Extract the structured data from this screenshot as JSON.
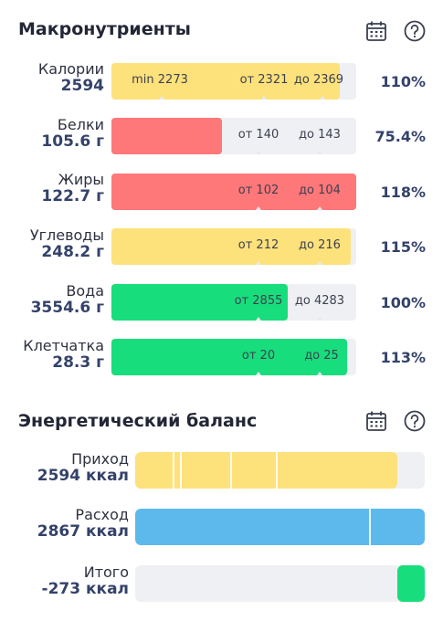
{
  "colors": {
    "yellow": "#fde17b",
    "red": "#fe7779",
    "green": "#18dd7c",
    "blue": "#5db9ec",
    "track": "#eff0f3"
  },
  "macro": {
    "title": "Макронутриенты",
    "calendar_icon": "calendar-icon",
    "help_icon": "help-icon",
    "rows": [
      {
        "name": "Калории",
        "value": "2594",
        "percent": "110%",
        "labels": [
          "min 2273",
          "от 2321",
          "до 2369"
        ],
        "fill_percent": 110,
        "color": "yellow"
      },
      {
        "name": "Белки",
        "value": "105.6 г",
        "percent": "75.4%",
        "labels": [
          "от 140",
          "до 143"
        ],
        "fill_percent": 75.4,
        "color": "red"
      },
      {
        "name": "Жиры",
        "value": "122.7 г",
        "percent": "118%",
        "labels": [
          "от 102",
          "до 104"
        ],
        "fill_percent": 118,
        "color": "red"
      },
      {
        "name": "Углеводы",
        "value": "248.2 г",
        "percent": "115%",
        "labels": [
          "от 212",
          "до 216"
        ],
        "fill_percent": 115,
        "color": "yellow"
      },
      {
        "name": "Вода",
        "value": "3554.6 г",
        "percent": "100%",
        "labels": [
          "от 2855",
          "до 4283"
        ],
        "fill_percent": 100,
        "color": "green"
      },
      {
        "name": "Клетчатка",
        "value": "28.3 г",
        "percent": "113%",
        "labels": [
          "от 20",
          "до 25"
        ],
        "fill_percent": 113,
        "color": "green"
      }
    ]
  },
  "energy": {
    "title": "Энергетический баланс",
    "calendar_icon": "calendar-icon",
    "help_icon": "help-icon",
    "rows": [
      {
        "name": "Приход",
        "value": "2594 ккал",
        "color": "yellow"
      },
      {
        "name": "Расход",
        "value": "2867 ккал",
        "color": "blue"
      },
      {
        "name": "Итого",
        "value": "-273 ккал",
        "color": "green"
      }
    ]
  }
}
